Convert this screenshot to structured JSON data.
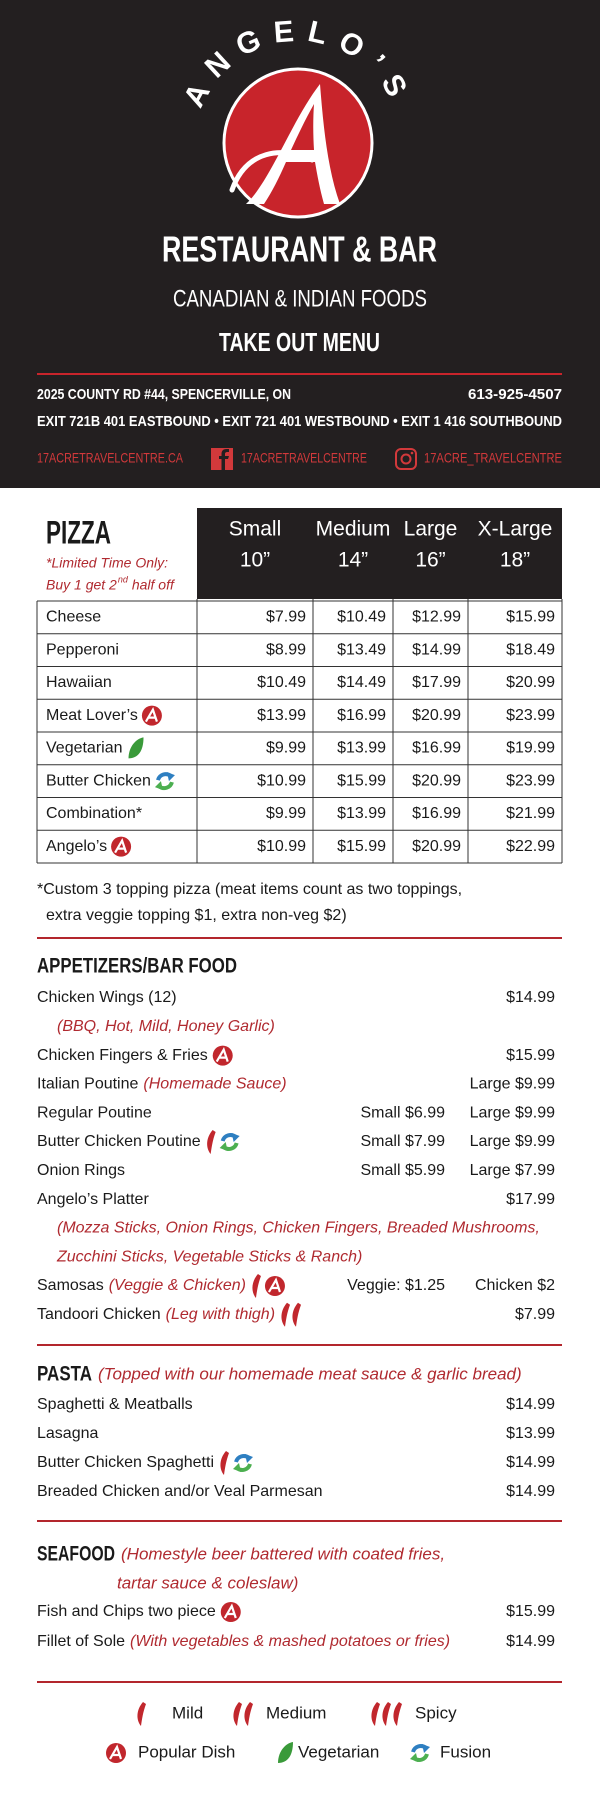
{
  "header": {
    "brand": "ANGELO’S",
    "title": "RESTAURANT & BAR",
    "subtitle": "CANADIAN & INDIAN FOODS",
    "menu_type": "TAKE OUT MENU",
    "address": "2025 COUNTY RD #44, SPENCERVILLE, ON",
    "phone": "613-925-4507",
    "directions": "EXIT 721B 401 EASTBOUND • EXIT 721 401 WESTBOUND • EXIT 1 416 SOUTHBOUND",
    "website": "17ACRETRAVELCENTRE.CA",
    "facebook": "17ACRETRAVELCENTRE",
    "instagram": "17ACRE_TRAVELCENTRE"
  },
  "pizza": {
    "title": "PIZZA",
    "note_line1": "*Limited Time Only:",
    "note_line2": {
      "text": "Buy 1 get 2",
      "sup": "nd",
      "rest": "half off"
    },
    "sizes": [
      {
        "name": "Small",
        "inches": "10”"
      },
      {
        "name": "Medium",
        "inches": "14”"
      },
      {
        "name": "Large",
        "inches": "16”"
      },
      {
        "name": "X-Large",
        "inches": "18”"
      }
    ],
    "rows": [
      {
        "name": "Cheese",
        "icons": [],
        "prices": [
          "$7.99",
          "$10.49",
          "$12.99",
          "$15.99"
        ]
      },
      {
        "name": "Pepperoni",
        "icons": [],
        "prices": [
          "$8.99",
          "$13.49",
          "$14.99",
          "$18.49"
        ]
      },
      {
        "name": "Hawaiian",
        "icons": [],
        "prices": [
          "$10.49",
          "$14.49",
          "$17.99",
          "$20.99"
        ]
      },
      {
        "name": "Meat Lover’s",
        "icons": [
          "popular"
        ],
        "prices": [
          "$13.99",
          "$16.99",
          "$20.99",
          "$23.99"
        ]
      },
      {
        "name": "Vegetarian",
        "icons": [
          "vegetarian"
        ],
        "prices": [
          "$9.99",
          "$13.99",
          "$16.99",
          "$19.99"
        ]
      },
      {
        "name": "Butter Chicken",
        "icons": [
          "fusion"
        ],
        "prices": [
          "$10.99",
          "$15.99",
          "$20.99",
          "$23.99"
        ]
      },
      {
        "name": "Combination*",
        "icons": [],
        "prices": [
          "$9.99",
          "$13.99",
          "$16.99",
          "$21.99"
        ]
      },
      {
        "name": "Angelo’s",
        "icons": [
          "popular"
        ],
        "prices": [
          "$10.99",
          "$15.99",
          "$20.99",
          "$22.99"
        ]
      }
    ],
    "footnote": [
      "*Custom 3 topping pizza (meat items count as two toppings,",
      "extra veggie topping $1, extra non-veg $2)"
    ]
  },
  "appetizers": {
    "title": "APPETIZERS/BAR FOOD",
    "note": [],
    "items": [
      {
        "name": "Chicken Wings (12)",
        "sub": [
          "(BBQ, Hot, Mild, Honey Garlic)"
        ],
        "icons": [],
        "prices": [
          "$14.99"
        ]
      },
      {
        "name": "Chicken Fingers & Fries",
        "icons": [
          "popular"
        ],
        "prices": [
          "$15.99"
        ]
      },
      {
        "name": "Italian Poutine",
        "note": "(Homemade Sauce)",
        "icons": [],
        "prices": [
          "Large $9.99"
        ]
      },
      {
        "name": "Regular Poutine",
        "icons": [],
        "prices": [
          "Small $6.99",
          "Large $9.99"
        ]
      },
      {
        "name": "Butter Chicken Poutine",
        "icons": [
          "mild",
          "fusion"
        ],
        "prices": [
          "Small $7.99",
          "Large $9.99"
        ]
      },
      {
        "name": "Onion Rings",
        "icons": [],
        "prices": [
          "Small $5.99",
          "Large $7.99"
        ]
      },
      {
        "name": "Angelo’s Platter",
        "sub": [
          "(Mozza Sticks, Onion Rings, Chicken Fingers, Breaded Mushrooms,",
          "Zucchini Sticks, Vegetable Sticks & Ranch)"
        ],
        "icons": [],
        "prices": [
          "$17.99"
        ]
      },
      {
        "name": "Samosas",
        "note": "(Veggie & Chicken)",
        "icons": [
          "mild",
          "popular"
        ],
        "prices": [
          "Veggie: $1.25",
          "Chicken $2"
        ]
      },
      {
        "name": "Tandoori Chicken",
        "note": "(Leg with thigh)",
        "icons": [
          "medium"
        ],
        "prices": [
          "$7.99"
        ]
      }
    ]
  },
  "pasta": {
    "title": "PASTA",
    "note": [
      "(Topped with our homemade meat sauce & garlic bread)"
    ],
    "items": [
      {
        "name": "Spaghetti & Meatballs",
        "icons": [],
        "prices": [
          "$14.99"
        ]
      },
      {
        "name": "Lasagna",
        "icons": [],
        "prices": [
          "$13.99"
        ]
      },
      {
        "name": "Butter Chicken Spaghetti",
        "icons": [
          "mild",
          "fusion"
        ],
        "prices": [
          "$14.99"
        ]
      },
      {
        "name": "Breaded Chicken and/or Veal Parmesan",
        "icons": [],
        "prices": [
          "$14.99"
        ]
      }
    ]
  },
  "seafood": {
    "title": "SEAFOOD",
    "note": [
      "(Homestyle beer battered with coated fries,",
      "tartar sauce & coleslaw)"
    ],
    "items": [
      {
        "name": "Fish and Chips two piece",
        "icons": [
          "popular"
        ],
        "prices": [
          "$15.99"
        ]
      },
      {
        "name": "Fillet of Sole",
        "note": "(With vegetables & mashed potatoes or fries)",
        "icons": [],
        "prices": [
          "$14.99"
        ]
      }
    ]
  },
  "legend": [
    {
      "icon": "mild",
      "label": "Mild"
    },
    {
      "icon": "medium",
      "label": "Medium"
    },
    {
      "icon": "spicy",
      "label": "Spicy"
    },
    {
      "icon": "popular",
      "label": "Popular Dish"
    },
    {
      "icon": "vegetarian",
      "label": "Vegetarian"
    },
    {
      "icon": "fusion",
      "label": "Fusion"
    }
  ]
}
